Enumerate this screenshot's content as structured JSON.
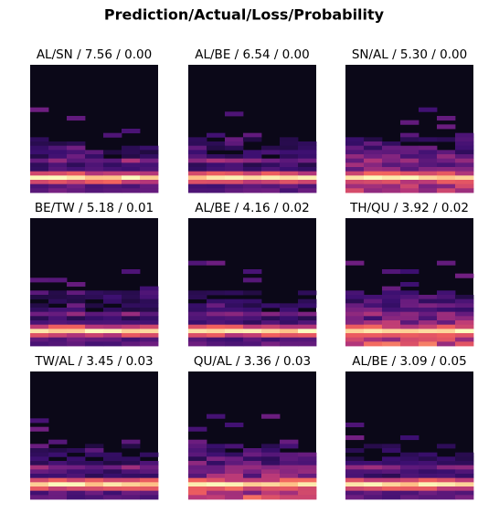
{
  "title": "Prediction/Actual/Loss/Probability",
  "panels": [
    {
      "label": "AL/SN / 7.56 / 0.00"
    },
    {
      "label": "AL/BE / 6.54 / 0.00"
    },
    {
      "label": "SN/AL / 5.30 / 0.00"
    },
    {
      "label": "BE/TW / 5.18 / 0.01"
    },
    {
      "label": "AL/BE / 4.16 / 0.02"
    },
    {
      "label": "TH/QU / 3.92 / 0.02"
    },
    {
      "label": "TW/AL / 3.45 / 0.03"
    },
    {
      "label": "QU/AL / 3.36 / 0.03"
    },
    {
      "label": "AL/BE / 3.09 / 0.05"
    }
  ]
}
